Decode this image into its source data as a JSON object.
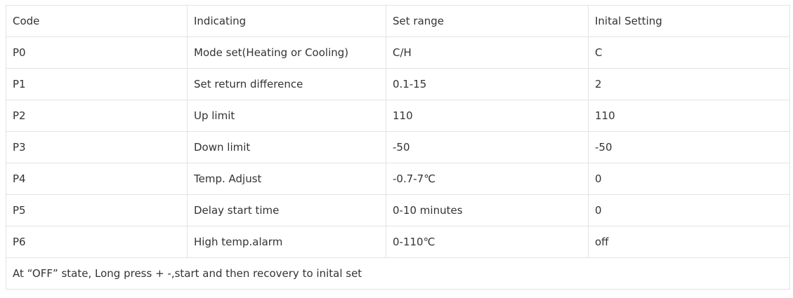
{
  "table": {
    "headers": [
      "Code",
      "Indicating",
      "Set range",
      "Inital Setting"
    ],
    "rows": [
      [
        "P0",
        "Mode set(Heating or Cooling)",
        "C/H",
        "C"
      ],
      [
        "P1",
        "Set return difference",
        "0.1-15",
        "2"
      ],
      [
        "P2",
        "Up limit",
        "110",
        "110"
      ],
      [
        "P3",
        "Down limit",
        "-50",
        "-50"
      ],
      [
        "P4",
        "Temp. Adjust",
        "-0.7-7℃",
        "0"
      ],
      [
        "P5",
        "Delay start time",
        "0-10 minutes",
        "0"
      ],
      [
        "P6",
        "High temp.alarm",
        "0-110℃",
        "off"
      ]
    ],
    "note": "At “OFF” state, Long press  + -,start and then recovery to inital set"
  }
}
